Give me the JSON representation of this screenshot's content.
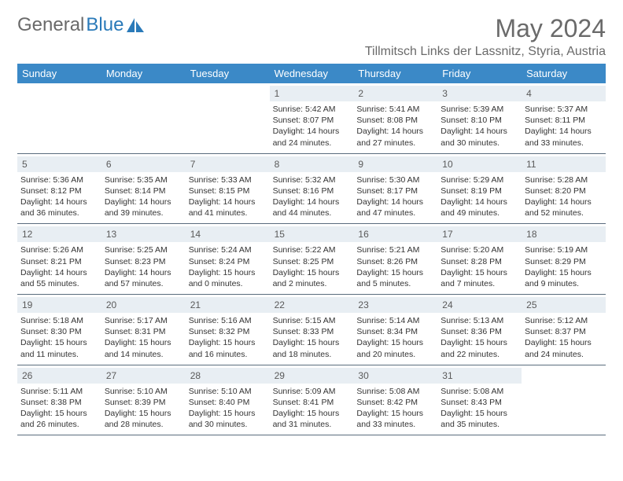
{
  "logo": {
    "text_gray": "General",
    "text_blue": "Blue"
  },
  "header": {
    "month_title": "May 2024",
    "location": "Tillmitsch Links der Lassnitz, Styria, Austria"
  },
  "colors": {
    "header_bg": "#3b89c7",
    "header_text": "#ffffff",
    "daynum_bg": "#e8eef3",
    "body_text": "#333333",
    "title_text": "#6a6a6a",
    "week_border": "#5a6c7d"
  },
  "day_names": [
    "Sunday",
    "Monday",
    "Tuesday",
    "Wednesday",
    "Thursday",
    "Friday",
    "Saturday"
  ],
  "weeks": [
    [
      {
        "blank": true
      },
      {
        "blank": true
      },
      {
        "blank": true
      },
      {
        "day": "1",
        "sunrise": "Sunrise: 5:42 AM",
        "sunset": "Sunset: 8:07 PM",
        "daylight1": "Daylight: 14 hours",
        "daylight2": "and 24 minutes."
      },
      {
        "day": "2",
        "sunrise": "Sunrise: 5:41 AM",
        "sunset": "Sunset: 8:08 PM",
        "daylight1": "Daylight: 14 hours",
        "daylight2": "and 27 minutes."
      },
      {
        "day": "3",
        "sunrise": "Sunrise: 5:39 AM",
        "sunset": "Sunset: 8:10 PM",
        "daylight1": "Daylight: 14 hours",
        "daylight2": "and 30 minutes."
      },
      {
        "day": "4",
        "sunrise": "Sunrise: 5:37 AM",
        "sunset": "Sunset: 8:11 PM",
        "daylight1": "Daylight: 14 hours",
        "daylight2": "and 33 minutes."
      }
    ],
    [
      {
        "day": "5",
        "sunrise": "Sunrise: 5:36 AM",
        "sunset": "Sunset: 8:12 PM",
        "daylight1": "Daylight: 14 hours",
        "daylight2": "and 36 minutes."
      },
      {
        "day": "6",
        "sunrise": "Sunrise: 5:35 AM",
        "sunset": "Sunset: 8:14 PM",
        "daylight1": "Daylight: 14 hours",
        "daylight2": "and 39 minutes."
      },
      {
        "day": "7",
        "sunrise": "Sunrise: 5:33 AM",
        "sunset": "Sunset: 8:15 PM",
        "daylight1": "Daylight: 14 hours",
        "daylight2": "and 41 minutes."
      },
      {
        "day": "8",
        "sunrise": "Sunrise: 5:32 AM",
        "sunset": "Sunset: 8:16 PM",
        "daylight1": "Daylight: 14 hours",
        "daylight2": "and 44 minutes."
      },
      {
        "day": "9",
        "sunrise": "Sunrise: 5:30 AM",
        "sunset": "Sunset: 8:17 PM",
        "daylight1": "Daylight: 14 hours",
        "daylight2": "and 47 minutes."
      },
      {
        "day": "10",
        "sunrise": "Sunrise: 5:29 AM",
        "sunset": "Sunset: 8:19 PM",
        "daylight1": "Daylight: 14 hours",
        "daylight2": "and 49 minutes."
      },
      {
        "day": "11",
        "sunrise": "Sunrise: 5:28 AM",
        "sunset": "Sunset: 8:20 PM",
        "daylight1": "Daylight: 14 hours",
        "daylight2": "and 52 minutes."
      }
    ],
    [
      {
        "day": "12",
        "sunrise": "Sunrise: 5:26 AM",
        "sunset": "Sunset: 8:21 PM",
        "daylight1": "Daylight: 14 hours",
        "daylight2": "and 55 minutes."
      },
      {
        "day": "13",
        "sunrise": "Sunrise: 5:25 AM",
        "sunset": "Sunset: 8:23 PM",
        "daylight1": "Daylight: 14 hours",
        "daylight2": "and 57 minutes."
      },
      {
        "day": "14",
        "sunrise": "Sunrise: 5:24 AM",
        "sunset": "Sunset: 8:24 PM",
        "daylight1": "Daylight: 15 hours",
        "daylight2": "and 0 minutes."
      },
      {
        "day": "15",
        "sunrise": "Sunrise: 5:22 AM",
        "sunset": "Sunset: 8:25 PM",
        "daylight1": "Daylight: 15 hours",
        "daylight2": "and 2 minutes."
      },
      {
        "day": "16",
        "sunrise": "Sunrise: 5:21 AM",
        "sunset": "Sunset: 8:26 PM",
        "daylight1": "Daylight: 15 hours",
        "daylight2": "and 5 minutes."
      },
      {
        "day": "17",
        "sunrise": "Sunrise: 5:20 AM",
        "sunset": "Sunset: 8:28 PM",
        "daylight1": "Daylight: 15 hours",
        "daylight2": "and 7 minutes."
      },
      {
        "day": "18",
        "sunrise": "Sunrise: 5:19 AM",
        "sunset": "Sunset: 8:29 PM",
        "daylight1": "Daylight: 15 hours",
        "daylight2": "and 9 minutes."
      }
    ],
    [
      {
        "day": "19",
        "sunrise": "Sunrise: 5:18 AM",
        "sunset": "Sunset: 8:30 PM",
        "daylight1": "Daylight: 15 hours",
        "daylight2": "and 11 minutes."
      },
      {
        "day": "20",
        "sunrise": "Sunrise: 5:17 AM",
        "sunset": "Sunset: 8:31 PM",
        "daylight1": "Daylight: 15 hours",
        "daylight2": "and 14 minutes."
      },
      {
        "day": "21",
        "sunrise": "Sunrise: 5:16 AM",
        "sunset": "Sunset: 8:32 PM",
        "daylight1": "Daylight: 15 hours",
        "daylight2": "and 16 minutes."
      },
      {
        "day": "22",
        "sunrise": "Sunrise: 5:15 AM",
        "sunset": "Sunset: 8:33 PM",
        "daylight1": "Daylight: 15 hours",
        "daylight2": "and 18 minutes."
      },
      {
        "day": "23",
        "sunrise": "Sunrise: 5:14 AM",
        "sunset": "Sunset: 8:34 PM",
        "daylight1": "Daylight: 15 hours",
        "daylight2": "and 20 minutes."
      },
      {
        "day": "24",
        "sunrise": "Sunrise: 5:13 AM",
        "sunset": "Sunset: 8:36 PM",
        "daylight1": "Daylight: 15 hours",
        "daylight2": "and 22 minutes."
      },
      {
        "day": "25",
        "sunrise": "Sunrise: 5:12 AM",
        "sunset": "Sunset: 8:37 PM",
        "daylight1": "Daylight: 15 hours",
        "daylight2": "and 24 minutes."
      }
    ],
    [
      {
        "day": "26",
        "sunrise": "Sunrise: 5:11 AM",
        "sunset": "Sunset: 8:38 PM",
        "daylight1": "Daylight: 15 hours",
        "daylight2": "and 26 minutes."
      },
      {
        "day": "27",
        "sunrise": "Sunrise: 5:10 AM",
        "sunset": "Sunset: 8:39 PM",
        "daylight1": "Daylight: 15 hours",
        "daylight2": "and 28 minutes."
      },
      {
        "day": "28",
        "sunrise": "Sunrise: 5:10 AM",
        "sunset": "Sunset: 8:40 PM",
        "daylight1": "Daylight: 15 hours",
        "daylight2": "and 30 minutes."
      },
      {
        "day": "29",
        "sunrise": "Sunrise: 5:09 AM",
        "sunset": "Sunset: 8:41 PM",
        "daylight1": "Daylight: 15 hours",
        "daylight2": "and 31 minutes."
      },
      {
        "day": "30",
        "sunrise": "Sunrise: 5:08 AM",
        "sunset": "Sunset: 8:42 PM",
        "daylight1": "Daylight: 15 hours",
        "daylight2": "and 33 minutes."
      },
      {
        "day": "31",
        "sunrise": "Sunrise: 5:08 AM",
        "sunset": "Sunset: 8:43 PM",
        "daylight1": "Daylight: 15 hours",
        "daylight2": "and 35 minutes."
      },
      {
        "blank": true
      }
    ]
  ]
}
